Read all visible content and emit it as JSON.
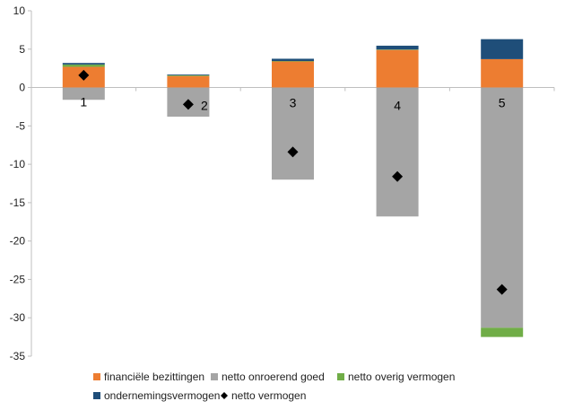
{
  "chart_data": {
    "type": "bar",
    "stacked": true,
    "categories": [
      "1",
      "2",
      "3",
      "4",
      "5"
    ],
    "ylim": [
      -35,
      10
    ],
    "yticks": [
      10,
      5,
      0,
      -5,
      -10,
      -15,
      -20,
      -25,
      -30,
      -35
    ],
    "grid": false,
    "legend_position": "bottom",
    "title": "",
    "xlabel": "",
    "ylabel": "",
    "series": [
      {
        "name": "financiële bezittingen",
        "type": "bar",
        "color": "#ED7D31",
        "values": [
          2.7,
          1.5,
          3.4,
          4.9,
          3.7
        ]
      },
      {
        "name": "netto onroerend goed",
        "type": "bar",
        "color": "#A5A5A5",
        "values": [
          -1.6,
          -3.8,
          -12.0,
          -16.8,
          -31.3
        ]
      },
      {
        "name": "netto overig vermogen",
        "type": "bar",
        "color": "#70AD47",
        "values": [
          0.3,
          0.1,
          0.05,
          0.05,
          -1.2
        ]
      },
      {
        "name": "ondernemingsvermogen",
        "type": "bar",
        "color": "#1F4E79",
        "values": [
          0.2,
          0.1,
          0.3,
          0.5,
          2.6
        ]
      },
      {
        "name": "netto vermogen",
        "type": "marker",
        "color": "#000000",
        "values": [
          1.6,
          -2.2,
          -8.4,
          -11.6,
          -26.3
        ]
      }
    ]
  }
}
